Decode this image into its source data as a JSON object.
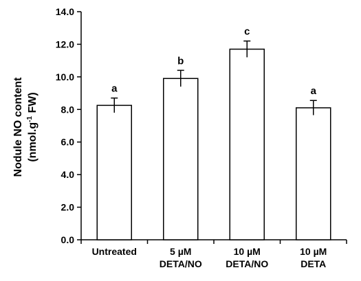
{
  "chart_data": {
    "type": "bar",
    "categories": [
      [
        "Untreated"
      ],
      [
        "5 µM",
        "DETA/NO"
      ],
      [
        "10 µM",
        "DETA/NO"
      ],
      [
        "10 µM",
        "DETA"
      ]
    ],
    "values": [
      8.25,
      9.9,
      11.7,
      8.1
    ],
    "errors": [
      0.45,
      0.5,
      0.5,
      0.45
    ],
    "significance": [
      "a",
      "b",
      "c",
      "a"
    ],
    "ylabel": {
      "line1": "Nodule NO content",
      "line2_before": "(nmol.g",
      "line2_sup": "-1",
      "line2_after": " FW)"
    },
    "ylim": [
      0,
      14
    ],
    "yticks": [
      "0.0",
      "2.0",
      "4.0",
      "6.0",
      "8.0",
      "10.0",
      "12.0",
      "14.0"
    ],
    "bar_fill": "#ffffff",
    "bar_stroke": "#000000",
    "grid": false
  }
}
